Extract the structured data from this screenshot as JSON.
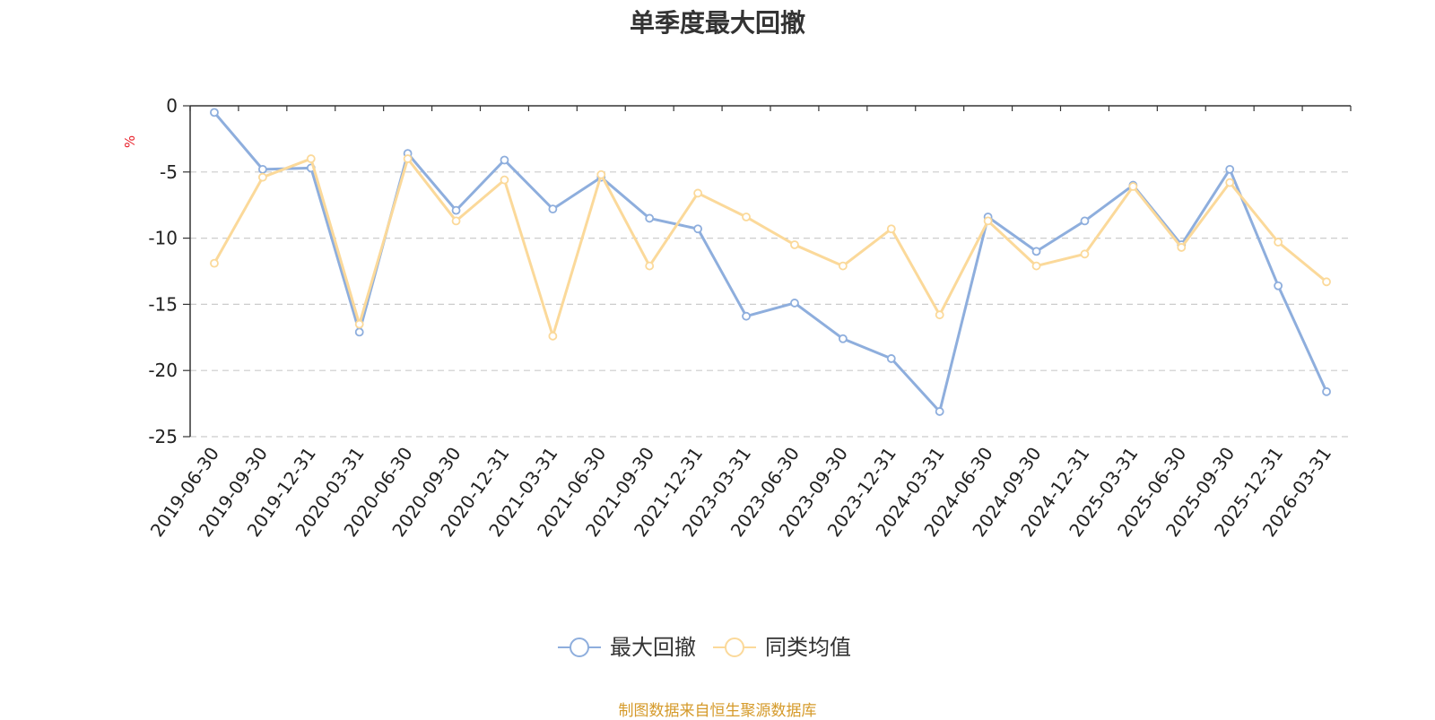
{
  "chart_data": {
    "type": "line",
    "title": "单季度最大回撤",
    "ylabel": "%",
    "ylim": [
      -25,
      0
    ],
    "yticks": [
      0,
      -5,
      -10,
      -15,
      -20,
      -25
    ],
    "grid": true,
    "legend_position": "bottom",
    "categories": [
      "2019-06-30",
      "2019-09-30",
      "2019-12-31",
      "2020-03-31",
      "2020-06-30",
      "2020-09-30",
      "2020-12-31",
      "2021-03-31",
      "2021-06-30",
      "2021-09-30",
      "2021-12-31",
      "2023-03-31",
      "2023-06-30",
      "2023-09-30",
      "2023-12-31",
      "2024-03-31",
      "2024-06-30",
      "2024-09-30",
      "2024-12-31",
      "2025-03-31",
      "2025-06-30",
      "2025-09-30",
      "2025-12-31",
      "2026-03-31"
    ],
    "series": [
      {
        "name": "最大回撤",
        "color": "#8eaedd",
        "values": [
          -0.5,
          -4.8,
          -4.7,
          -17.1,
          -3.6,
          -7.9,
          -4.1,
          -7.8,
          -5.4,
          -8.5,
          -9.3,
          -15.9,
          -14.9,
          -17.6,
          -19.1,
          -23.1,
          -8.4,
          -11.0,
          -8.7,
          -6.0,
          -10.5,
          -4.8,
          -13.6,
          -21.6
        ]
      },
      {
        "name": "同类均值",
        "color": "#fbd99a",
        "values": [
          -11.9,
          -5.4,
          -4.0,
          -16.5,
          -4.0,
          -8.7,
          -5.6,
          -17.4,
          -5.2,
          -12.1,
          -6.6,
          -8.4,
          -10.5,
          -12.1,
          -9.3,
          -15.8,
          -8.7,
          -12.1,
          -11.2,
          -6.1,
          -10.7,
          -5.8,
          -10.3,
          -13.3
        ]
      }
    ]
  },
  "footer": {
    "source": "制图数据来自恒生聚源数据库"
  }
}
